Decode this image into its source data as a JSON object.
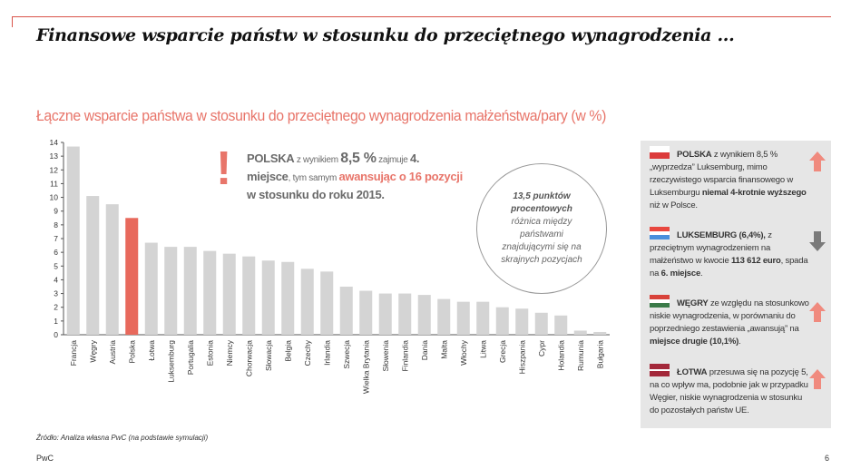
{
  "header": {
    "title": "Finansowe wsparcie państw w stosunku do przeciętnego wynagrodzenia ..."
  },
  "chart_data": {
    "type": "bar",
    "title": "Łączne wsparcie państwa w stosunku do przeciętnego wynagrodzenia małżeństwa/pary (w %)",
    "categories": [
      "Francja",
      "Węgry",
      "Austria",
      "Polska",
      "Łotwa",
      "Luksemburg",
      "Portugalia",
      "Estonia",
      "Niemcy",
      "Chorwacja",
      "Słowacja",
      "Belgia",
      "Czechy",
      "Irlandia",
      "Szwecja",
      "Wielka Brytania",
      "Słowenia",
      "Finlandia",
      "Dania",
      "Malta",
      "Włochy",
      "Litwa",
      "Grecja",
      "Hiszpania",
      "Cypr",
      "Holandia",
      "Rumunia",
      "Bułgaria"
    ],
    "values": [
      13.7,
      10.1,
      9.5,
      8.5,
      6.7,
      6.4,
      6.4,
      6.1,
      5.9,
      5.7,
      5.4,
      5.3,
      4.8,
      4.6,
      3.5,
      3.2,
      3.0,
      3.0,
      2.9,
      2.6,
      2.4,
      2.4,
      2.0,
      1.9,
      1.6,
      1.4,
      0.3,
      0.2
    ],
    "highlight": "Polska",
    "ylim": [
      0,
      14
    ],
    "yticks": [
      0,
      1,
      2,
      3,
      4,
      5,
      6,
      7,
      8,
      9,
      10,
      11,
      12,
      13,
      14
    ],
    "grid": false,
    "colors": {
      "bar": "#d4d4d4",
      "highlight": "#e8695c",
      "axis": "#555555"
    }
  },
  "callout": {
    "mark": "!",
    "p1": "POLSKA",
    "p2": " z wynikiem ",
    "p3": "8,5 %",
    "p4": " zajmuje ",
    "p5": "4.",
    "p6": "miejsce",
    "p7": ", tym samym ",
    "p8": "awansując o 16 pozycji",
    "p9": "w stosunku do roku 2015."
  },
  "circle": {
    "l1": "13,5 punktów",
    "l2": "procentowych",
    "l3": "różnica między",
    "l4": "państwami",
    "l5": "znajdującymi się na",
    "l6": "skrajnych pozycjach"
  },
  "panel": {
    "items": [
      {
        "bold": "POLSKA",
        "t1": " z wynikiem 8,5 % „wyprzedza” Luksemburg, mimo rzeczywistego wsparcia finansowego w Luksemburgu ",
        "b2": "niemal 4-krotnie wyższego",
        "t2": " niż w Polsce.",
        "arrow": "up"
      },
      {
        "bold": "LUKSEMBURG (6,4%),",
        "t1": " z przeciętnym wynagrodzeniem na małżeństwo w kwocie ",
        "b2": "113 612 euro",
        "t2": ", spada na ",
        "b3": "6. miejsce",
        "t3": ".",
        "arrow": "down"
      },
      {
        "bold": "WĘGRY",
        "t1": " ze względu na stosunkowo niskie wynagrodzenia, w porównaniu do poprzedniego zestawienia „awansują” na ",
        "b2": "miejsce drugie (10,1%)",
        "t2": ".",
        "arrow": "up"
      },
      {
        "bold": "ŁOTWA",
        "t1": " przesuwa się na pozycję 5, na co wpływ ma, podobnie jak w przypadku Węgier, niskie wynagrodzenia w stosunku do pozostałych państw UE.",
        "arrow": "up"
      }
    ],
    "colors": {
      "up": "#f08a7e",
      "down": "#7a7a7a"
    }
  },
  "footer": {
    "source": "Źródło: Analiza własna PwC (na podstawie symulacji)",
    "brand": "PwC",
    "page": "6"
  }
}
